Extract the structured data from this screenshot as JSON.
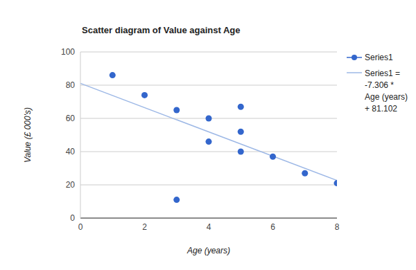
{
  "chart_data": {
    "type": "scatter",
    "title": "Scatter diagram of Value against Age",
    "x_label": "Age (years)",
    "y_label": "Value (£ 000's)",
    "series": [
      {
        "name": "Series1",
        "color": "#3366cc",
        "marker": "circle",
        "x": [
          1,
          2,
          3,
          3,
          4,
          4,
          5,
          5,
          5,
          6,
          7,
          8
        ],
        "values": [
          86,
          74,
          65,
          11,
          60,
          46,
          67,
          52,
          40,
          37,
          27,
          21
        ]
      }
    ],
    "trendline": {
      "label": "Series1 = -7.306 * Age (years) + 81.102",
      "slope": -7.306,
      "intercept": 81.102,
      "color": "#9db8e6",
      "line_style": "solid"
    },
    "xlim": [
      0,
      8
    ],
    "xticks": [
      0,
      2,
      4,
      6,
      8
    ],
    "ylim": [
      0,
      100
    ],
    "yticks": [
      0,
      20,
      40,
      60,
      80,
      100
    ],
    "grid": true,
    "legend": "right"
  }
}
